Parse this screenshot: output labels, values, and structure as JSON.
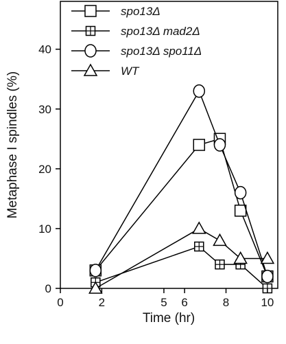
{
  "chart_data": {
    "type": "line",
    "xlabel": "Time (hr)",
    "ylabel": "Metaphase I spindles (%)",
    "xlim": [
      0,
      10.5
    ],
    "ylim": [
      0,
      48
    ],
    "xticks": [
      0,
      2,
      5,
      6,
      8,
      10
    ],
    "xtick_labels": [
      "0",
      "2",
      "5",
      "6",
      "8",
      "10"
    ],
    "yticks": [
      0,
      10,
      20,
      30,
      40
    ],
    "ytick_labels": [
      "0",
      "10",
      "20",
      "30",
      "40"
    ],
    "legend_position": "top-left, inside plot",
    "marker_fill": "#ffffff",
    "line_color": "#000000",
    "series": [
      {
        "name": "spo13Δ",
        "marker": "square",
        "x": [
          1.7,
          6.7,
          7.7,
          8.7,
          10
        ],
        "values": [
          3,
          24,
          25,
          13,
          2
        ]
      },
      {
        "name": "spo13Δ mad2Δ",
        "marker": "crossed-square",
        "x": [
          1.7,
          6.7,
          7.7,
          8.7,
          10
        ],
        "values": [
          1,
          7,
          4,
          4,
          0
        ]
      },
      {
        "name": "spo13Δ spo11Δ",
        "marker": "circle",
        "x": [
          1.7,
          6.7,
          7.7,
          8.7,
          10
        ],
        "values": [
          3,
          33,
          24,
          16,
          2
        ]
      },
      {
        "name": "WT",
        "marker": "triangle",
        "x": [
          1.7,
          6.7,
          7.7,
          8.7,
          10
        ],
        "values": [
          0,
          10,
          8,
          5,
          5
        ]
      }
    ]
  }
}
